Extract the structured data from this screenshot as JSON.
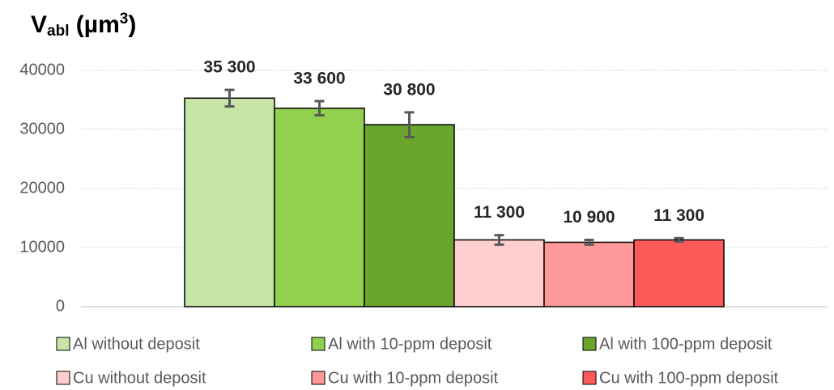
{
  "chart_data": {
    "type": "bar",
    "title": [
      "V",
      "abl",
      " (µm",
      "3",
      ")"
    ],
    "series": [
      {
        "name": "Al without deposit",
        "color": "#c6e5a6",
        "values": [
          35300
        ],
        "value_labels": [
          "35 300"
        ],
        "errors": [
          1400
        ]
      },
      {
        "name": "Al with 10-ppm deposit",
        "color": "#92d050",
        "values": [
          33600
        ],
        "value_labels": [
          "33 600"
        ],
        "errors": [
          1200
        ]
      },
      {
        "name": "Al with 100-ppm deposit",
        "color": "#6aa62e",
        "values": [
          30800
        ],
        "value_labels": [
          "30 800"
        ],
        "errors": [
          2100
        ]
      },
      {
        "name": "Cu without deposit",
        "color": "#ffcfcf",
        "values": [
          11300
        ],
        "value_labels": [
          "11 300"
        ],
        "errors": [
          800
        ]
      },
      {
        "name": "Cu with 10-ppm deposit",
        "color": "#ff9999",
        "values": [
          10900
        ],
        "value_labels": [
          "10 900"
        ],
        "errors": [
          400
        ]
      },
      {
        "name": "Cu with 100-ppm deposit",
        "color": "#ff5a5a",
        "values": [
          11300
        ],
        "value_labels": [
          "11 300"
        ],
        "errors": [
          300
        ]
      }
    ],
    "ylim": [
      0,
      40000
    ],
    "yticks": [
      0,
      10000,
      20000,
      30000,
      40000
    ],
    "grid": true
  }
}
